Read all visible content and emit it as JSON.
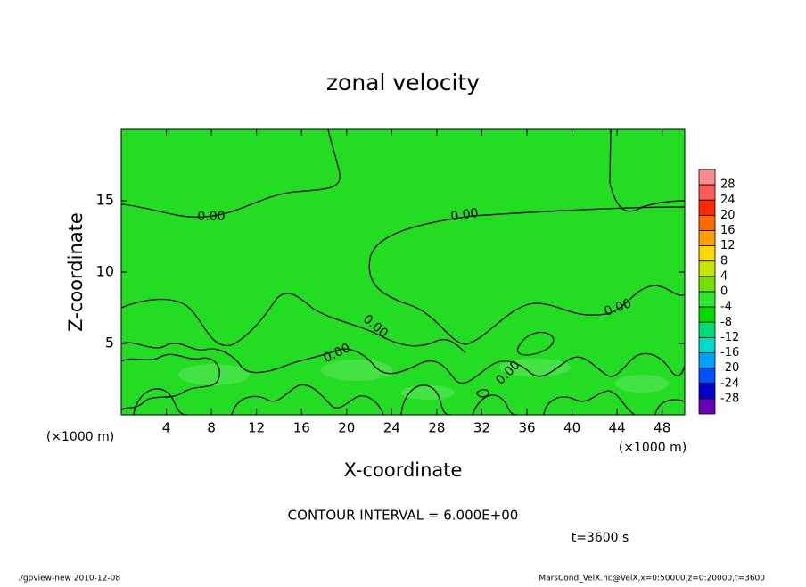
{
  "chart_data": {
    "type": "contour",
    "title": "zonal velocity",
    "x_label": "X-coordinate",
    "y_label": "Z-coordinate",
    "x_unit": "(×1000 m)",
    "x_unit_right": "(×1000 m)",
    "xlim": [
      0,
      50
    ],
    "xticks": [
      4,
      8,
      12,
      16,
      20,
      24,
      28,
      32,
      36,
      40,
      44,
      48
    ],
    "ylim": [
      0,
      20
    ],
    "yticks": [
      5,
      10,
      15
    ],
    "contour_labels": [
      "0.00",
      "0.00",
      "0.00",
      "0.00",
      "0.00",
      "0.00"
    ],
    "colorbar": {
      "levels": [
        28,
        24,
        20,
        16,
        12,
        8,
        4,
        0,
        -4,
        -8,
        -12,
        -16,
        -20,
        -24,
        -28
      ],
      "colors": [
        "#ff8c8c",
        "#ff5a5a",
        "#ff2a00",
        "#ff6a00",
        "#ffa000",
        "#ffd800",
        "#c8e600",
        "#78e000",
        "#2ee82e",
        "#00dc00",
        "#00dc78",
        "#00dcc8",
        "#00a0ff",
        "#0050ff",
        "#0000c8",
        "#6a00b4"
      ]
    },
    "field_color": "#22dd22",
    "contour_interval": "CONTOUR INTERVAL = 6.000E+00",
    "time_label": "t=3600 s",
    "footer_left": "./gpview-new  2010-12-08",
    "footer_right": "MarsCond_VelX.nc@VelX,x=0:50000,z=0:20000,t=3600"
  }
}
